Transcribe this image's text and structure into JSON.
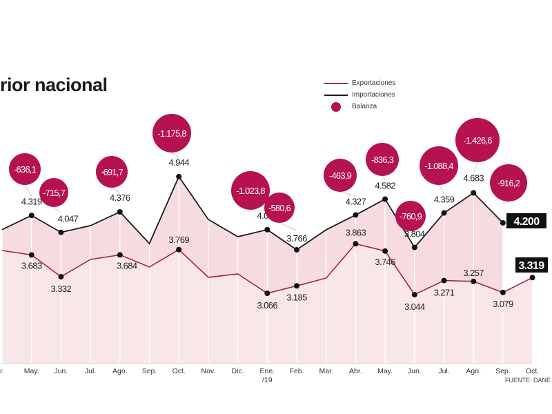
{
  "title": "rior nacional",
  "source": "FUENTE: DANE",
  "colors": {
    "exports": "#a3214f",
    "imports": "#1a1a1a",
    "balance": "#b5124f",
    "area": "#f5dde1"
  },
  "chart_data": {
    "type": "line",
    "title": "rior nacional",
    "categories": [
      "Abr.",
      "May.",
      "Jun.",
      "Jul.",
      "Ago.",
      "Sep.",
      "Oct.",
      "Nov.",
      "Dic.",
      "Ene. /19",
      "Feb.",
      "Mar.",
      "Abr.",
      "May.",
      "Jun.",
      "Jul.",
      "Ago.",
      "Sep.",
      "Oct."
    ],
    "tick_labels": [
      "r.",
      "May.",
      "Jun.",
      "Jul.",
      "Ago.",
      "Sep.",
      "Oct.",
      "Nov.",
      "Dic.",
      "Ene.\n/19",
      "Feb.",
      "Mar.",
      "Abr.",
      "May.",
      "Jun.",
      "Jul.",
      "Ago.",
      "Sep.",
      "Oct."
    ],
    "legend": [
      "Exportaciones",
      "Importaciones",
      "Balanza"
    ],
    "legend_position": "top-right",
    "grid": "vertical",
    "series": [
      {
        "name": "Exportaciones",
        "values": [
          3755,
          3683,
          3332,
          3611,
          3684,
          3489,
          3769,
          3322,
          3378,
          3066,
          3185,
          3311,
          3863,
          3746,
          3044,
          3271,
          3257,
          3079,
          3319
        ],
        "labels": [
          null,
          "3.683",
          "3.332",
          null,
          "3.684",
          null,
          "3.769",
          null,
          null,
          "3.066",
          "3.185",
          null,
          "3.863",
          "3.746",
          "3.044",
          "3.271",
          "3.257",
          "3.079",
          "3.319"
        ]
      },
      {
        "name": "Importaciones",
        "values": [
          4090,
          4319,
          4047,
          4155,
          4376,
          3866,
          4944,
          4255,
          3977,
          4090,
          3766,
          4088,
          4327,
          4582,
          3804,
          4359,
          4683,
          4200,
          null
        ],
        "labels": [
          null,
          "4.319",
          "4.047",
          null,
          "4.376",
          null,
          "4.944",
          null,
          null,
          "4.090",
          "3.766",
          null,
          "4.327",
          "4.582",
          "3.804",
          "4.359",
          "4.683",
          "4.200",
          null
        ]
      },
      {
        "name": "Balanza",
        "values": [
          null,
          -636.1,
          -715.7,
          null,
          -691.7,
          null,
          -1175.8,
          null,
          null,
          -1023.8,
          -580.6,
          null,
          -463.9,
          -836.3,
          -760.9,
          -1088.4,
          -1426.6,
          -916.2,
          null
        ],
        "labels": [
          null,
          "-636,1",
          "-715,7",
          null,
          "-691,7",
          null,
          "-1.175,8",
          null,
          null,
          "-1.023,8",
          "-580,6",
          null,
          "-463,9",
          "-836,3",
          "-760,9",
          "-1.088,4",
          "-1.426,6",
          "-916,2",
          null
        ]
      }
    ]
  }
}
